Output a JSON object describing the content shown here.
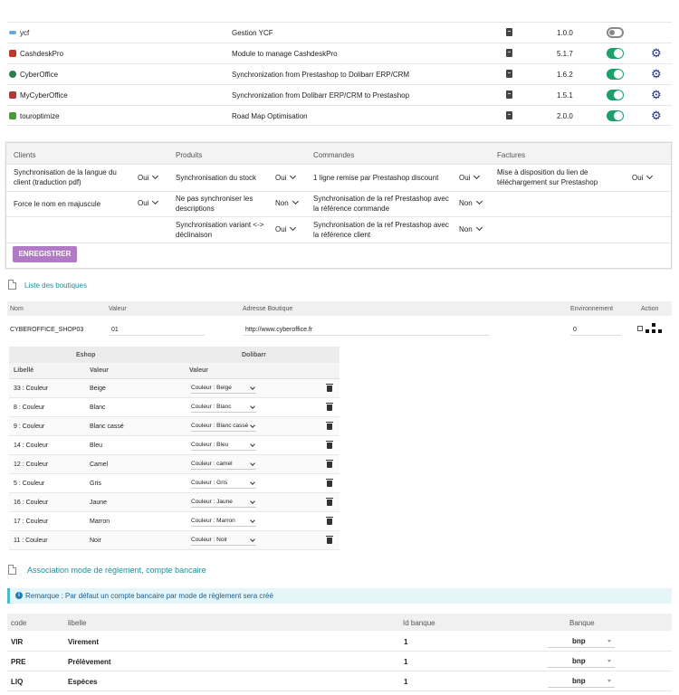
{
  "modules": [
    {
      "name": "ycf",
      "desc": "Gestion YCF",
      "version": "1.0.0",
      "enabled": false,
      "icon_color": "#6aa7d8",
      "has_config": false
    },
    {
      "name": "CashdeskPro",
      "desc": "Module to manage CashdeskPro",
      "version": "5.1.7",
      "enabled": true,
      "icon_color": "#c0392b",
      "has_config": true
    },
    {
      "name": "CyberOffice",
      "desc": "Synchronization from Prestashop to Dolibarr ERP/CRM",
      "version": "1.6.2",
      "enabled": true,
      "icon_color": "#2e7d4f",
      "has_config": true
    },
    {
      "name": "MyCyberOffice",
      "desc": "Synchronization from Dolibarr ERP/CRM to Prestashop",
      "version": "1.5.1",
      "enabled": true,
      "icon_color": "#b03a3a",
      "has_config": true
    },
    {
      "name": "touroptimize",
      "desc": "Road Map Optimisation",
      "version": "2.0.0",
      "enabled": true,
      "icon_color": "#4a9a3a",
      "has_config": true
    }
  ],
  "settings": {
    "headers": [
      "Clients",
      "Produits",
      "Commandes",
      "Factures"
    ],
    "clients": [
      {
        "label": "Synchronisation de la langue du client (traduction pdf)",
        "value": "Oui"
      },
      {
        "label": "Force le nom en majuscule",
        "value": "Oui"
      }
    ],
    "produits": [
      {
        "label": "Synchronisation du stock",
        "value": "Oui"
      },
      {
        "label": "Ne pas synchroniser les descriptions",
        "value": "Non"
      },
      {
        "label": "Synchronisation variant <-> déclinaison",
        "value": "Oui"
      }
    ],
    "commandes": [
      {
        "label": "1 ligne remise par Prestashop discount",
        "value": "Oui"
      },
      {
        "label": "Synchronisation de la ref Prestashop avec la référence commande",
        "value": "Non"
      },
      {
        "label": "Synchronisation de la ref Prestashop avec la référence client",
        "value": "Non"
      }
    ],
    "factures": [
      {
        "label": "Mise à disposition du lien de téléchargement sur Prestashop",
        "value": "Oui"
      }
    ],
    "save_label": "ENREGISTRER"
  },
  "boutiques": {
    "title": "Liste des boutiques",
    "columns": [
      "Nom",
      "Valeur",
      "Adresse Boutique",
      "Environnement",
      "Action"
    ],
    "row": {
      "nom": "CYBEROFFICE_SHOP03",
      "valeur": "01",
      "adresse": "http://www.cyberoffice.fr",
      "env": "0"
    }
  },
  "mapping": {
    "group_headers": [
      "Eshop",
      "Dolibarr"
    ],
    "columns": [
      "Libellé",
      "Valeur",
      "Valeur"
    ],
    "rows": [
      {
        "libelle": "33 : Couleur",
        "valeur": "Beige",
        "dolibarr": "Couleur : Beige"
      },
      {
        "libelle": "8 : Couleur",
        "valeur": "Blanc",
        "dolibarr": "Couleur : Blanc"
      },
      {
        "libelle": "9 : Couleur",
        "valeur": "Blanc cassé",
        "dolibarr": "Couleur : Blanc cassé"
      },
      {
        "libelle": "14 : Couleur",
        "valeur": "Bleu",
        "dolibarr": "Couleur : Bleu"
      },
      {
        "libelle": "12 : Couleur",
        "valeur": "Camel",
        "dolibarr": "Couleur : camel"
      },
      {
        "libelle": "5 : Couleur",
        "valeur": "Gris",
        "dolibarr": "Couleur : Gris"
      },
      {
        "libelle": "16 : Couleur",
        "valeur": "Jaune",
        "dolibarr": "Couleur : Jaune"
      },
      {
        "libelle": "17 : Couleur",
        "valeur": "Marron",
        "dolibarr": "Couleur : Marron"
      },
      {
        "libelle": "11 : Couleur",
        "valeur": "Noir",
        "dolibarr": "Couleur : Noir"
      }
    ]
  },
  "payment": {
    "title": "Association mode de règlement, compte bancaire",
    "note": "Remarque : Par défaut un compte bancaire par mode de règlement sera créé",
    "columns": [
      "code",
      "libelle",
      "Id banque",
      "Banque"
    ],
    "rows": [
      {
        "code": "VIR",
        "libelle": "Virement",
        "id": "1",
        "banque": "bnp"
      },
      {
        "code": "PRE",
        "libelle": "Prélèvement",
        "id": "1",
        "banque": "bnp"
      },
      {
        "code": "LIQ",
        "libelle": "Espèces",
        "id": "1",
        "banque": "bnp"
      }
    ]
  },
  "colors": {
    "accent": "#1f8f99",
    "toggle_on": "#1aa068",
    "gear": "#1c2f80",
    "save_button": "#b07bc4"
  }
}
